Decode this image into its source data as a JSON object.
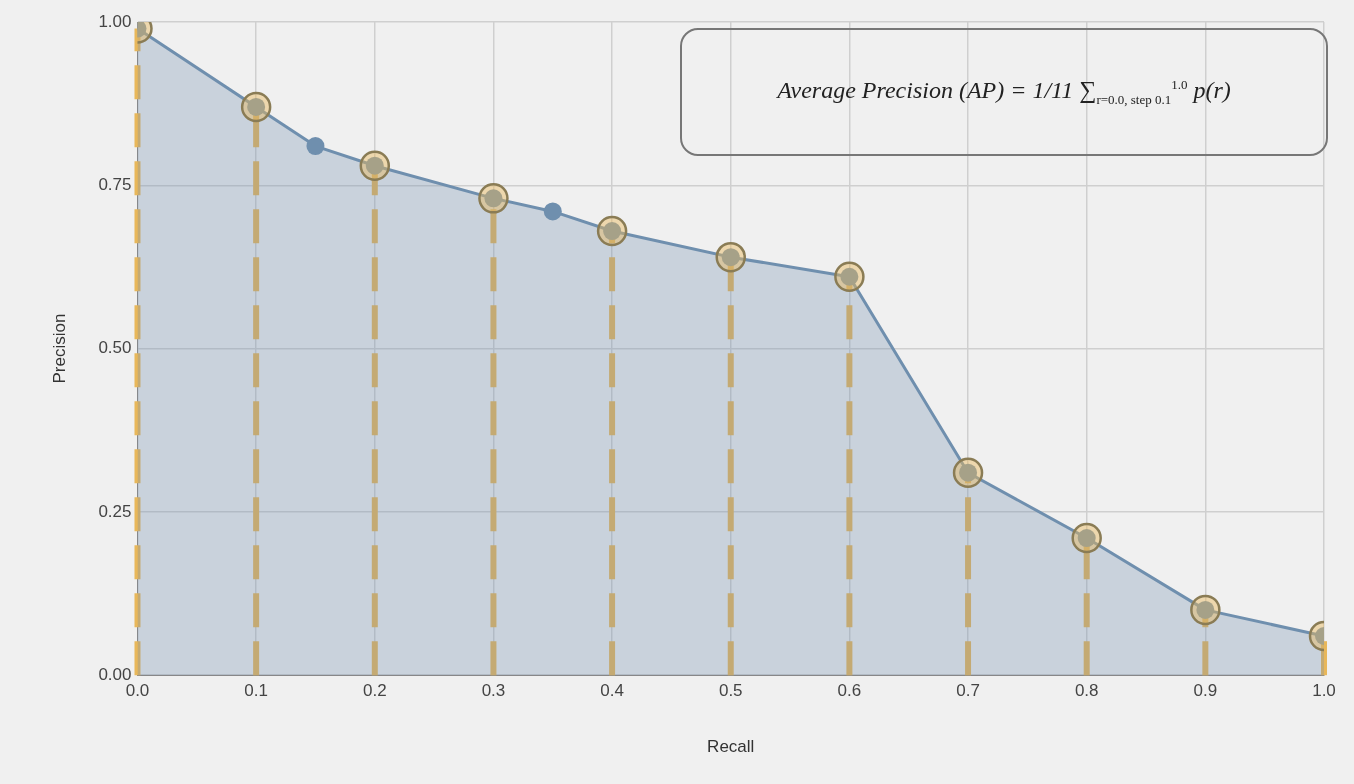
{
  "chart_data": {
    "type": "area",
    "xlabel": "Recall",
    "ylabel": "Precision",
    "annotations": [
      "Average Precision (AP) = 1/11 ∑$_{r=0.0, step 0.1}$$^{1.0}$ p(r)"
    ],
    "series": [
      {
        "type": "area",
        "color": "#6f8fae",
        "x": [
          0,
          0.1,
          0.15,
          0.2,
          0.3,
          0.35,
          0.4,
          0.5,
          0.6,
          0.7,
          0.8,
          0.9,
          1.0
        ],
        "values": [
          0.99,
          0.87,
          0.81,
          0.78,
          0.73,
          0.71,
          0.68,
          0.64,
          0.61,
          0.31,
          0.21,
          0.1,
          0.06
        ]
      },
      {
        "type": "lollipop",
        "color": "#e8b75a",
        "line_style": "dashed",
        "x": [
          0,
          0.1,
          0.2,
          0.3,
          0.4,
          0.5,
          0.6,
          0.7,
          0.8,
          0.9,
          1.0
        ],
        "values": [
          0.99,
          0.87,
          0.78,
          0.73,
          0.68,
          0.64,
          0.61,
          0.31,
          0.21,
          0.1,
          0.06
        ]
      }
    ],
    "xlim": [
      0,
      1
    ],
    "xticks": [
      {
        "value": 0,
        "label": "0.0"
      },
      0.1,
      0.2,
      0.3,
      0.4,
      0.5,
      0.6,
      0.7,
      0.8,
      0.9,
      {
        "value": 1,
        "label": "1.0"
      }
    ],
    "ylim": [
      0,
      1
    ],
    "yticks": [
      {
        "value": 0,
        "label": "0.00"
      },
      {
        "value": 0.25,
        "label": "0.25"
      },
      {
        "value": 0.5,
        "label": "0.50"
      },
      {
        "value": 0.75,
        "label": "0.75"
      },
      {
        "value": 1,
        "label": "1.00"
      }
    ],
    "grid": true,
    "legend": false,
    "marker": "circle"
  }
}
